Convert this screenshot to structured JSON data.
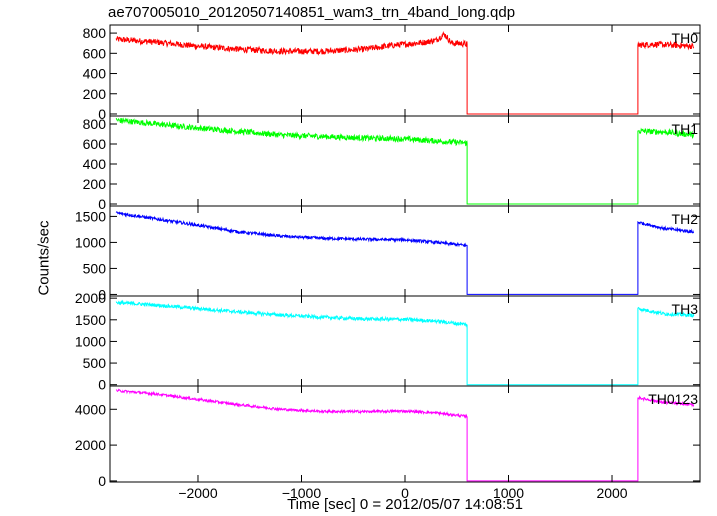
{
  "chart_data": {
    "type": "line",
    "title": "ae707005010_20120507140851_wam3_trn_4band_long.qdp",
    "xlabel": "Time [sec] 0 = 2012/05/07 14:08:51",
    "ylabel": "Counts/sec",
    "xlim": [
      -2850,
      2850
    ],
    "x_ticks": [
      -2000,
      -1000,
      0,
      1000,
      2000
    ],
    "x_tick_labels": [
      "−2000",
      "−1000",
      "0",
      "1000",
      "2000"
    ],
    "gap": {
      "start": 600,
      "end": 2250,
      "level": 0
    },
    "panels": [
      {
        "name": "TH0",
        "color": "#ff0000",
        "ylim": [
          -20,
          880
        ],
        "yticks": [
          0,
          200,
          400,
          600,
          800
        ],
        "noise": 30,
        "x": [
          -2800,
          -2400,
          -2000,
          -1600,
          -1200,
          -800,
          -400,
          -100,
          200,
          300,
          380,
          450,
          520,
          600,
          2250,
          2400,
          2600,
          2800
        ],
        "y": [
          740,
          710,
          670,
          640,
          620,
          620,
          640,
          680,
          710,
          730,
          790,
          700,
          700,
          690,
          680,
          690,
          680,
          670
        ]
      },
      {
        "name": "TH1",
        "color": "#00ff00",
        "ylim": [
          -20,
          880
        ],
        "yticks": [
          0,
          200,
          400,
          600,
          800
        ],
        "noise": 28,
        "x": [
          -2800,
          -2000,
          -1200,
          -400,
          0,
          300,
          600,
          2250,
          2500,
          2800
        ],
        "y": [
          840,
          760,
          690,
          660,
          650,
          630,
          610,
          730,
          720,
          690
        ]
      },
      {
        "name": "TH2",
        "color": "#0000ff",
        "ylim": [
          -30,
          1700
        ],
        "yticks": [
          0,
          500,
          1000,
          1500
        ],
        "noise": 28,
        "x": [
          -2800,
          -2400,
          -2000,
          -1600,
          -1200,
          -800,
          -400,
          0,
          300,
          600,
          2250,
          2500,
          2800
        ],
        "y": [
          1570,
          1450,
          1330,
          1200,
          1120,
          1080,
          1060,
          1050,
          1000,
          940,
          1390,
          1270,
          1200
        ]
      },
      {
        "name": "TH3",
        "color": "#00ffff",
        "ylim": [
          -30,
          2050
        ],
        "yticks": [
          0,
          500,
          1000,
          1500,
          2000
        ],
        "noise": 40,
        "x": [
          -2800,
          -2400,
          -2000,
          -1600,
          -1200,
          -800,
          -400,
          0,
          300,
          600,
          2250,
          2500,
          2800
        ],
        "y": [
          1900,
          1840,
          1760,
          1680,
          1610,
          1560,
          1520,
          1510,
          1470,
          1390,
          1760,
          1640,
          1600
        ]
      },
      {
        "name": "TH0123",
        "color": "#ff00ff",
        "ylim": [
          -60,
          5300
        ],
        "yticks": [
          0,
          2000,
          4000
        ],
        "noise": 70,
        "x": [
          -2800,
          -2400,
          -2000,
          -1600,
          -1200,
          -800,
          -400,
          0,
          300,
          600,
          2250,
          2500,
          2800
        ],
        "y": [
          5050,
          4850,
          4550,
          4250,
          4000,
          3880,
          3870,
          3900,
          3800,
          3600,
          4650,
          4380,
          4250
        ]
      }
    ]
  }
}
